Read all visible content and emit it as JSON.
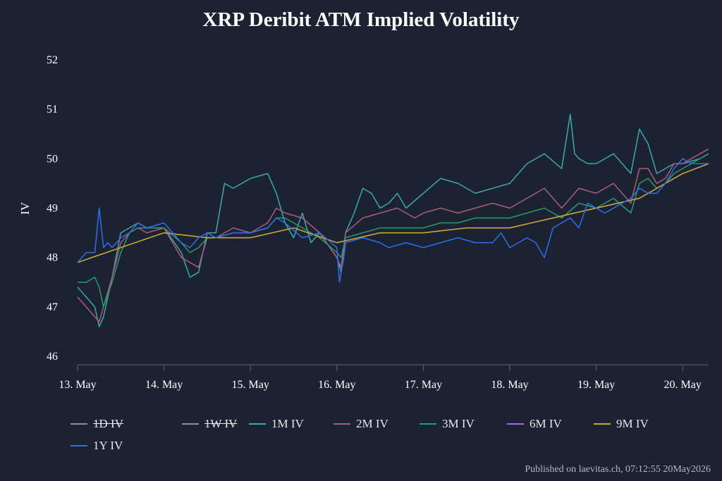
{
  "title": "XRP Deribit ATM Implied Volatility",
  "credit": "Published on laevitas.ch, 07:12:55 20May2026",
  "colors": {
    "background": "#1b2231",
    "text": "#ffffff",
    "axis": "#5b6477"
  },
  "legend": [
    {
      "label": "1D IV",
      "color": "#8a8f98",
      "disabled": true
    },
    {
      "label": "1W IV",
      "color": "#8a8f98",
      "disabled": true
    },
    {
      "label": "1M IV",
      "color": "#3fa7ad",
      "disabled": false
    },
    {
      "label": "2M IV",
      "color": "#b05a78",
      "disabled": false
    },
    {
      "label": "3M IV",
      "color": "#2a9a6a",
      "disabled": false
    },
    {
      "label": "6M IV",
      "color": "#a86be0",
      "disabled": false
    },
    {
      "label": "9M IV",
      "color": "#c8a92a",
      "disabled": false
    },
    {
      "label": "1Y IV",
      "color": "#2f6ef0",
      "disabled": false
    }
  ],
  "chart_data": {
    "type": "line",
    "title": "XRP Deribit ATM Implied Volatility",
    "xlabel": "",
    "ylabel": "IV",
    "ylim": [
      46,
      52
    ],
    "yticks": [
      46,
      47,
      48,
      49,
      50,
      51,
      52
    ],
    "xticks": [
      "13. May",
      "14. May",
      "15. May",
      "16. May",
      "17. May",
      "18. May",
      "19. May",
      "20. May"
    ],
    "xlim_days": [
      13,
      20.3
    ],
    "grid": false,
    "legend_position": "bottom",
    "series": [
      {
        "name": "1M IV",
        "color": "#3fa7ad",
        "x": [
          13.0,
          13.1,
          13.2,
          13.25,
          13.3,
          13.4,
          13.5,
          13.6,
          13.7,
          13.8,
          14.0,
          14.2,
          14.3,
          14.4,
          14.5,
          14.6,
          14.7,
          14.8,
          15.0,
          15.2,
          15.3,
          15.4,
          15.5,
          15.6,
          15.7,
          15.8,
          16.0,
          16.05,
          16.1,
          16.2,
          16.3,
          16.4,
          16.5,
          16.6,
          16.7,
          16.8,
          17.0,
          17.2,
          17.4,
          17.6,
          17.8,
          18.0,
          18.2,
          18.4,
          18.6,
          18.7,
          18.75,
          18.8,
          18.9,
          19.0,
          19.2,
          19.4,
          19.5,
          19.6,
          19.7,
          19.8,
          19.9,
          20.0,
          20.2,
          20.3
        ],
        "y": [
          47.4,
          47.2,
          47.0,
          46.6,
          46.8,
          47.6,
          48.5,
          48.6,
          48.7,
          48.6,
          48.6,
          48.1,
          47.6,
          47.7,
          48.5,
          48.5,
          49.5,
          49.4,
          49.6,
          49.7,
          49.3,
          48.7,
          48.4,
          48.9,
          48.3,
          48.5,
          48.0,
          47.7,
          48.5,
          48.9,
          49.4,
          49.3,
          49.0,
          49.1,
          49.3,
          49.0,
          49.3,
          49.6,
          49.5,
          49.3,
          49.4,
          49.5,
          49.9,
          50.1,
          49.8,
          50.9,
          50.1,
          50.0,
          49.9,
          49.9,
          50.1,
          49.7,
          50.6,
          50.3,
          49.7,
          49.8,
          49.9,
          49.9,
          50.0,
          50.1
        ]
      },
      {
        "name": "2M IV",
        "color": "#b05a78",
        "x": [
          13.0,
          13.1,
          13.2,
          13.25,
          13.3,
          13.4,
          13.5,
          13.6,
          13.7,
          13.8,
          14.0,
          14.2,
          14.3,
          14.4,
          14.5,
          14.6,
          14.8,
          15.0,
          15.2,
          15.3,
          15.4,
          15.6,
          15.8,
          16.0,
          16.05,
          16.1,
          16.3,
          16.5,
          16.7,
          16.9,
          17.0,
          17.2,
          17.4,
          17.6,
          17.8,
          18.0,
          18.2,
          18.4,
          18.6,
          18.8,
          19.0,
          19.2,
          19.4,
          19.5,
          19.6,
          19.7,
          19.8,
          19.9,
          20.0,
          20.2,
          20.3
        ],
        "y": [
          47.2,
          47.0,
          46.8,
          46.7,
          47.0,
          47.6,
          48.3,
          48.5,
          48.6,
          48.5,
          48.6,
          48.0,
          47.9,
          47.8,
          48.4,
          48.4,
          48.6,
          48.5,
          48.7,
          49.0,
          48.9,
          48.8,
          48.5,
          48.0,
          47.8,
          48.5,
          48.8,
          48.9,
          49.0,
          48.8,
          48.9,
          49.0,
          48.9,
          49.0,
          49.1,
          49.0,
          49.2,
          49.4,
          49.0,
          49.4,
          49.3,
          49.5,
          49.1,
          49.8,
          49.8,
          49.5,
          49.6,
          49.9,
          49.9,
          50.1,
          50.2
        ]
      },
      {
        "name": "3M IV",
        "color": "#2a9a6a",
        "x": [
          13.0,
          13.1,
          13.2,
          13.25,
          13.3,
          13.4,
          13.5,
          13.6,
          13.7,
          13.8,
          14.0,
          14.2,
          14.3,
          14.4,
          14.5,
          14.6,
          14.8,
          15.0,
          15.2,
          15.3,
          15.4,
          15.6,
          15.8,
          16.0,
          16.05,
          16.1,
          16.3,
          16.5,
          16.7,
          16.9,
          17.0,
          17.2,
          17.4,
          17.6,
          17.8,
          18.0,
          18.2,
          18.4,
          18.6,
          18.8,
          19.0,
          19.2,
          19.4,
          19.5,
          19.6,
          19.7,
          19.8,
          19.9,
          20.0,
          20.2,
          20.3
        ],
        "y": [
          47.5,
          47.5,
          47.6,
          47.4,
          47.0,
          47.5,
          48.1,
          48.5,
          48.6,
          48.6,
          48.6,
          48.3,
          48.1,
          48.2,
          48.4,
          48.4,
          48.5,
          48.5,
          48.6,
          48.8,
          48.8,
          48.6,
          48.4,
          48.1,
          48.0,
          48.4,
          48.5,
          48.6,
          48.6,
          48.6,
          48.6,
          48.7,
          48.7,
          48.8,
          48.8,
          48.8,
          48.9,
          49.0,
          48.8,
          49.1,
          49.0,
          49.2,
          48.9,
          49.5,
          49.6,
          49.4,
          49.5,
          49.7,
          49.8,
          50.0,
          50.1
        ]
      },
      {
        "name": "6M IV",
        "color": "#a86be0",
        "x": [
          13.0,
          13.5,
          14.0,
          14.5,
          15.0,
          15.5,
          16.0,
          16.5,
          17.0,
          17.5,
          18.0,
          18.5,
          19.0,
          19.5,
          20.0,
          20.3
        ],
        "y": [
          47.9,
          48.2,
          48.5,
          48.4,
          48.4,
          48.6,
          48.3,
          48.5,
          48.5,
          48.6,
          48.6,
          48.8,
          49.0,
          49.2,
          49.7,
          49.9
        ]
      },
      {
        "name": "9M IV",
        "color": "#c8a92a",
        "x": [
          13.0,
          13.5,
          14.0,
          14.5,
          15.0,
          15.5,
          16.0,
          16.5,
          17.0,
          17.5,
          18.0,
          18.5,
          19.0,
          19.5,
          20.0,
          20.3
        ],
        "y": [
          47.9,
          48.2,
          48.5,
          48.4,
          48.4,
          48.6,
          48.3,
          48.5,
          48.5,
          48.6,
          48.6,
          48.8,
          49.0,
          49.2,
          49.7,
          49.9
        ]
      },
      {
        "name": "1Y IV",
        "color": "#2f6ef0",
        "x": [
          13.0,
          13.1,
          13.2,
          13.25,
          13.3,
          13.35,
          13.4,
          13.5,
          13.6,
          13.7,
          13.8,
          14.0,
          14.2,
          14.3,
          14.4,
          14.5,
          14.6,
          14.8,
          15.0,
          15.2,
          15.3,
          15.4,
          15.6,
          15.8,
          16.0,
          16.03,
          16.08,
          16.1,
          16.3,
          16.5,
          16.6,
          16.8,
          17.0,
          17.2,
          17.4,
          17.6,
          17.8,
          17.9,
          18.0,
          18.2,
          18.3,
          18.4,
          18.5,
          18.6,
          18.7,
          18.8,
          18.9,
          19.0,
          19.1,
          19.2,
          19.3,
          19.4,
          19.5,
          19.6,
          19.7,
          19.8,
          19.9,
          20.0,
          20.1,
          20.2,
          20.3
        ],
        "y": [
          47.9,
          48.1,
          48.1,
          49.0,
          48.2,
          48.3,
          48.2,
          48.4,
          48.5,
          48.7,
          48.6,
          48.7,
          48.3,
          48.2,
          48.4,
          48.5,
          48.4,
          48.5,
          48.5,
          48.6,
          48.8,
          48.7,
          48.4,
          48.5,
          48.2,
          47.5,
          48.0,
          48.3,
          48.4,
          48.3,
          48.2,
          48.3,
          48.2,
          48.3,
          48.4,
          48.3,
          48.3,
          48.5,
          48.2,
          48.4,
          48.3,
          48.0,
          48.6,
          48.7,
          48.8,
          48.6,
          49.1,
          49.0,
          48.9,
          49.0,
          49.1,
          49.2,
          49.4,
          49.3,
          49.3,
          49.5,
          49.8,
          50.0,
          49.9,
          49.9,
          49.9
        ]
      }
    ]
  }
}
